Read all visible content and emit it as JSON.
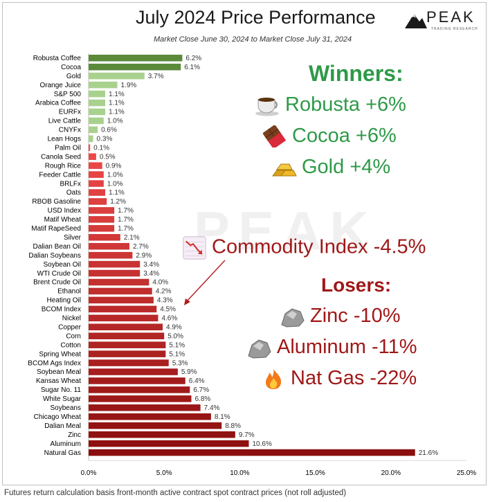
{
  "header": {
    "title": "July 2024 Price Performance",
    "subtitle": "Market Close June 30, 2024 to Market Close July 31, 2024",
    "logo_word": "PEAK",
    "logo_tagline": "TRADING RESEARCH",
    "watermark": "PEAK"
  },
  "chart_data": {
    "type": "bar",
    "orientation": "horizontal",
    "title": "July 2024 Price Performance",
    "xlim": [
      0,
      25
    ],
    "xticks": [
      "0.0%",
      "5.0%",
      "10.0%",
      "15.0%",
      "20.0%",
      "25.0%"
    ],
    "categories": [
      "Robusta Coffee",
      "Cocoa",
      "Gold",
      "Orange Juice",
      "S&P 500",
      "Arabica Coffee",
      "EURFx",
      "Live Cattle",
      "CNYFx",
      "Lean Hogs",
      "Palm Oil",
      "Canola Seed",
      "Rough Rice",
      "Feeder Cattle",
      "BRLFx",
      "Oats",
      "RBOB Gasoline",
      "USD Index",
      "Matif Wheat",
      "Matif RapeSeed",
      "Silver",
      "Dalian Bean Oil",
      "Dalian Soybeans",
      "Soybean Oil",
      "WTI Crude Oil",
      "Brent Crude Oil",
      "Ethanol",
      "Heating Oil",
      "BCOM Index",
      "Nickel",
      "Copper",
      "Corn",
      "Cotton",
      "Spring Wheat",
      "BCOM Ags Index",
      "Soybean Meal",
      "Kansas Wheat",
      "Sugar No. 11",
      "White Sugar",
      "Soybeans",
      "Chicago Wheat",
      "Dalian Meal",
      "Zinc",
      "Aluminum",
      "Natural Gas"
    ],
    "values": [
      6.2,
      6.1,
      3.7,
      1.9,
      1.1,
      1.1,
      1.1,
      1.0,
      0.6,
      0.3,
      0.1,
      0.5,
      0.9,
      1.0,
      1.0,
      1.1,
      1.2,
      1.7,
      1.7,
      1.7,
      2.1,
      2.7,
      2.9,
      3.4,
      3.4,
      4.0,
      4.2,
      4.3,
      4.5,
      4.6,
      4.9,
      5.0,
      5.1,
      5.1,
      5.3,
      5.9,
      6.4,
      6.7,
      6.8,
      7.4,
      8.1,
      8.8,
      9.7,
      10.6,
      21.6
    ],
    "labels": [
      "6.2%",
      "6.1%",
      "3.7%",
      "1.9%",
      "1.1%",
      "1.1%",
      "1.1%",
      "1.0%",
      "0.6%",
      "0.3%",
      "0.1%",
      "0.5%",
      "0.9%",
      "1.0%",
      "1.0%",
      "1.1%",
      "1.2%",
      "1.7%",
      "1.7%",
      "1.7%",
      "2.1%",
      "2.7%",
      "2.9%",
      "3.4%",
      "3.4%",
      "4.0%",
      "4.2%",
      "4.3%",
      "4.5%",
      "4.6%",
      "4.9%",
      "5.0%",
      "5.1%",
      "5.1%",
      "5.3%",
      "5.9%",
      "6.4%",
      "6.7%",
      "6.8%",
      "7.4%",
      "8.1%",
      "8.8%",
      "9.7%",
      "10.6%",
      "21.6%"
    ],
    "direction": [
      "gain",
      "gain",
      "gain",
      "gain",
      "gain",
      "gain",
      "gain",
      "gain",
      "gain",
      "gain",
      "loss",
      "loss",
      "loss",
      "loss",
      "loss",
      "loss",
      "loss",
      "loss",
      "loss",
      "loss",
      "loss",
      "loss",
      "loss",
      "loss",
      "loss",
      "loss",
      "loss",
      "loss",
      "loss",
      "loss",
      "loss",
      "loss",
      "loss",
      "loss",
      "loss",
      "loss",
      "loss",
      "loss",
      "loss",
      "loss",
      "loss",
      "loss",
      "loss",
      "loss",
      "loss"
    ]
  },
  "colors": {
    "gain_strong": "#5a8a3a",
    "gain_light": "#a9d18e",
    "loss_light": "#f04a4a",
    "loss_dark": "#8b0e0e",
    "winners_text": "#2e9a48",
    "losers_text": "#a01818"
  },
  "winners": {
    "heading": "Winners:",
    "items": [
      {
        "icon": "coffee-cup-icon",
        "text": "Robusta +6%"
      },
      {
        "icon": "chocolate-bar-icon",
        "text": "Cocoa +6%"
      },
      {
        "icon": "gold-bars-icon",
        "text": "Gold +4%"
      }
    ]
  },
  "index_callout": {
    "icon": "chart-decreasing-icon",
    "text": "Commodity Index -4.5%"
  },
  "losers": {
    "heading": "Losers:",
    "items": [
      {
        "icon": "rock-icon",
        "text": "Zinc -10%"
      },
      {
        "icon": "rock-icon",
        "text": "Aluminum -11%"
      },
      {
        "icon": "fire-icon",
        "text": "Nat Gas -22%"
      }
    ]
  },
  "footnote": "Futures return calculation basis front-month active contract spot contract prices (not roll adjusted)"
}
